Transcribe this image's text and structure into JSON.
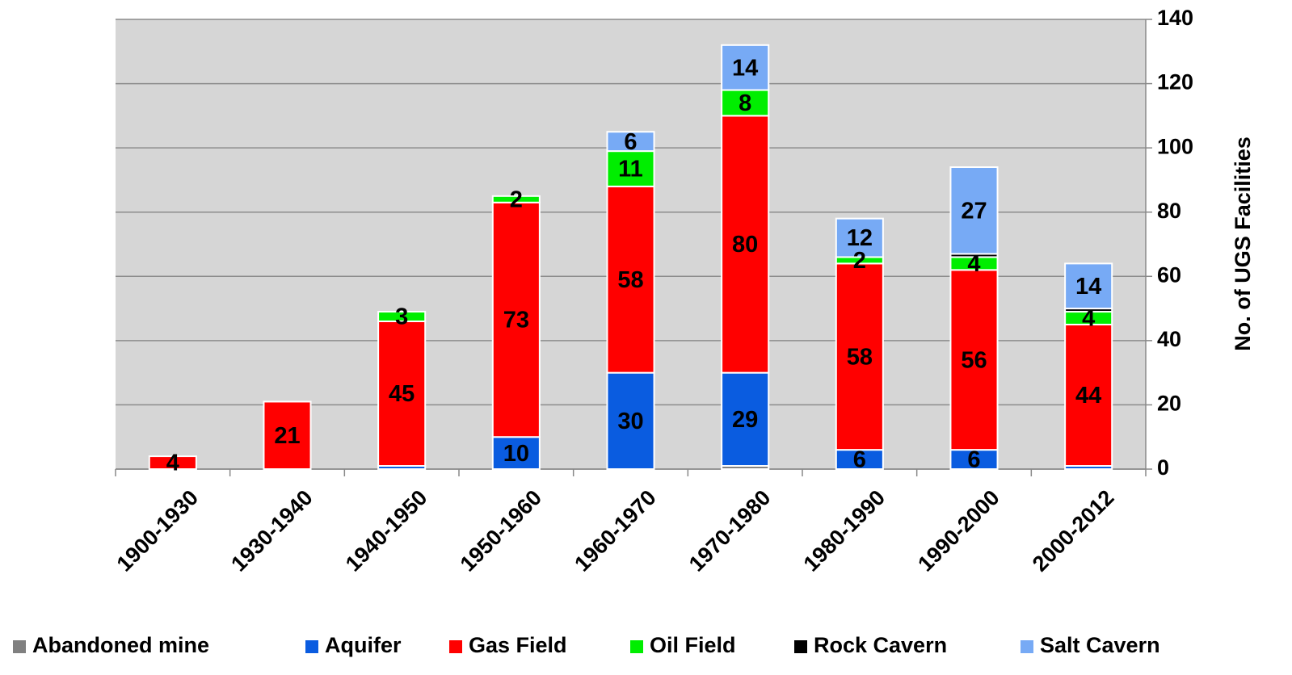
{
  "chart_data": {
    "type": "stacked_bar",
    "y_axis_label": "No. of UGS Facilities",
    "y_axis_side": "right",
    "categories": [
      "1900-1930",
      "1930-1940",
      "1940-1950",
      "1950-1960",
      "1960-1970",
      "1970-1980",
      "1980-1990",
      "1990-2000",
      "2000-2012"
    ],
    "series": [
      {
        "name": "Abandoned mine",
        "color": "#808080",
        "values": [
          0,
          0,
          0,
          0,
          0,
          1,
          0,
          0,
          0
        ],
        "value_labels": [
          null,
          null,
          null,
          null,
          null,
          null,
          null,
          null,
          null
        ]
      },
      {
        "name": "Aquifer",
        "color": "#0a5ce0",
        "values": [
          0,
          0,
          1,
          10,
          30,
          29,
          6,
          6,
          1
        ],
        "value_labels": [
          null,
          null,
          null,
          "10",
          "30",
          "29",
          "6",
          "6",
          null
        ]
      },
      {
        "name": "Gas Field",
        "color": "#ff0000",
        "values": [
          4,
          21,
          45,
          73,
          58,
          80,
          58,
          56,
          44
        ],
        "value_labels": [
          "4",
          "21",
          "45",
          "73",
          "58",
          "80",
          "58",
          "56",
          "44"
        ]
      },
      {
        "name": "Oil Field",
        "color": "#00ee00",
        "values": [
          0,
          0,
          3,
          2,
          11,
          8,
          2,
          4,
          4
        ],
        "value_labels": [
          null,
          null,
          "3",
          "2",
          "11",
          "8",
          "2",
          "4",
          "4"
        ]
      },
      {
        "name": "Rock Cavern",
        "color": "#000000",
        "values": [
          0,
          0,
          0,
          0,
          0,
          0,
          0,
          1,
          1
        ],
        "value_labels": [
          null,
          null,
          null,
          null,
          null,
          null,
          null,
          null,
          null
        ]
      },
      {
        "name": "Salt Cavern",
        "color": "#77aaf5",
        "values": [
          0,
          0,
          0,
          0,
          6,
          14,
          12,
          27,
          14
        ],
        "value_labels": [
          null,
          null,
          null,
          null,
          "6",
          "14",
          "12",
          "27",
          "14"
        ]
      }
    ],
    "ylim": [
      0,
      140
    ],
    "yticks": [
      0,
      20,
      40,
      60,
      80,
      100,
      120,
      140
    ],
    "grid": true,
    "legend": "bottom",
    "plot_background": "#d6d6d6"
  }
}
